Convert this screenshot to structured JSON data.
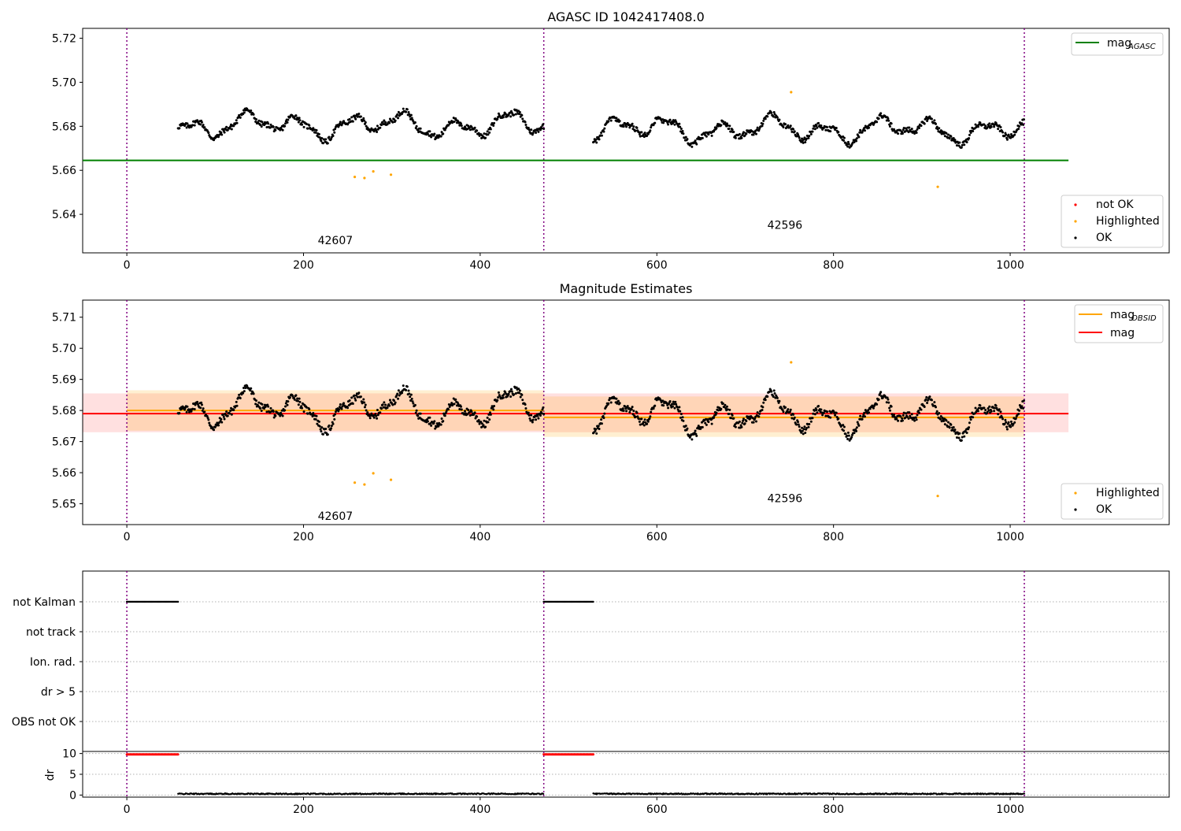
{
  "chart_data": [
    {
      "type": "scatter",
      "title": "AGASC ID 1042417408.0",
      "xlim": [
        -50,
        1180
      ],
      "ylim": [
        5.6225,
        5.7245
      ],
      "x_ticks": [
        0,
        200,
        400,
        600,
        800,
        1000
      ],
      "y_ticks": [
        5.64,
        5.66,
        5.68,
        5.7,
        5.72
      ],
      "y_tick_labels": [
        "5.64",
        "5.66",
        "5.68",
        "5.70",
        "5.72"
      ],
      "obsid_boundaries": [
        0,
        472,
        1016
      ],
      "obsid_labels": [
        {
          "text": "42607",
          "x": 236,
          "y": 5.6265
        },
        {
          "text": "42596",
          "x": 745,
          "y": 5.6335
        }
      ],
      "agasc_mag": {
        "value": 5.6645,
        "x_range": [
          -50,
          1066
        ],
        "color": "#008000"
      },
      "series": [
        {
          "name": "not OK",
          "color": "#ff0000",
          "points": []
        },
        {
          "name": "Highlighted",
          "color": "#ffa500",
          "points": [
            [
              258,
              5.657
            ],
            [
              269,
              5.6565
            ],
            [
              279,
              5.6595
            ],
            [
              299,
              5.658
            ],
            [
              752,
              5.6955
            ],
            [
              918,
              5.6525
            ]
          ]
        },
        {
          "name": "OK",
          "color": "#000000",
          "segments": [
            {
              "x0": 58,
              "x1": 472,
              "mean": 5.6805,
              "amp": 0.007
            },
            {
              "x0": 528,
              "x1": 1016,
              "mean": 5.6785,
              "amp": 0.007
            }
          ]
        }
      ],
      "legend_upper": {
        "mag_label": "mag",
        "mag_sub": "AGASC"
      },
      "legend_lower": [
        "not OK",
        "Highlighted",
        "OK"
      ]
    },
    {
      "type": "scatter",
      "title": "Magnitude Estimates",
      "xlim": [
        -50,
        1180
      ],
      "ylim": [
        5.6433,
        5.7155
      ],
      "x_ticks": [
        0,
        200,
        400,
        600,
        800,
        1000
      ],
      "y_ticks": [
        5.65,
        5.66,
        5.67,
        5.68,
        5.69,
        5.7,
        5.71
      ],
      "y_tick_labels": [
        "5.65",
        "5.66",
        "5.67",
        "5.68",
        "5.69",
        "5.70",
        "5.71"
      ],
      "obsid_boundaries": [
        0,
        472,
        1016
      ],
      "obsid_labels": [
        {
          "text": "42607",
          "x": 236,
          "y": 5.6448
        },
        {
          "text": "42596",
          "x": 745,
          "y": 5.6505
        }
      ],
      "mag": {
        "value": 5.679,
        "band": [
          5.673,
          5.6855
        ],
        "x_range": [
          -50,
          1066
        ],
        "color": "#ff0000"
      },
      "mag_obsid": [
        {
          "x_range": [
            0,
            472
          ],
          "value": 5.68,
          "band": [
            5.6735,
            5.6865
          ]
        },
        {
          "x_range": [
            472,
            1016
          ],
          "value": 5.6778,
          "band": [
            5.6715,
            5.6845
          ]
        }
      ],
      "mag_obsid_color": "#ffa500",
      "series": [
        {
          "name": "Highlighted",
          "color": "#ffa500",
          "points": [
            [
              258,
              5.6568
            ],
            [
              269,
              5.6562
            ],
            [
              279,
              5.6598
            ],
            [
              299,
              5.6577
            ],
            [
              752,
              5.6955
            ],
            [
              918,
              5.6525
            ]
          ]
        },
        {
          "name": "OK",
          "color": "#000000",
          "segments": [
            {
              "x0": 58,
              "x1": 472,
              "mean": 5.6805,
              "amp": 0.007
            },
            {
              "x0": 528,
              "x1": 1016,
              "mean": 5.6785,
              "amp": 0.007
            }
          ]
        }
      ],
      "legend_upper": [
        {
          "label": "mag",
          "sub": "OBSID",
          "color": "#ffa500"
        },
        {
          "label": "mag",
          "sub": "",
          "color": "#ff0000"
        }
      ],
      "legend_lower": [
        "Highlighted",
        "OK"
      ]
    },
    {
      "type": "scatter",
      "xlim": [
        -50,
        1180
      ],
      "categories": [
        "not Kalman",
        "not track",
        "Ion. rad.",
        "dr > 5",
        "OBS not OK"
      ],
      "flag_segments": [
        {
          "category": "not Kalman",
          "x0": 0,
          "x1": 58
        },
        {
          "category": "not Kalman",
          "x0": 472,
          "x1": 528
        }
      ],
      "obsid_boundaries": [
        0,
        472,
        1016
      ]
    },
    {
      "type": "scatter",
      "xlim": [
        -50,
        1180
      ],
      "ylim": [
        -0.5,
        10.5
      ],
      "ylabel": "dr",
      "x_ticks": [
        0,
        200,
        400,
        600,
        800,
        1000
      ],
      "y_ticks": [
        0,
        5,
        10
      ],
      "y_tick_labels": [
        "0",
        "5",
        "10"
      ],
      "obsid_boundaries": [
        0,
        472,
        1016
      ],
      "series": [
        {
          "name": "dr > 5",
          "color": "#ff0000",
          "segments": [
            {
              "x0": 0,
              "x1": 58,
              "value": 9.8
            },
            {
              "x0": 472,
              "x1": 528,
              "value": 9.8
            }
          ]
        },
        {
          "name": "dr",
          "color": "#000000",
          "segments": [
            {
              "x0": 58,
              "x1": 472,
              "value": 0.3
            },
            {
              "x0": 528,
              "x1": 1016,
              "value": 0.3
            }
          ]
        }
      ]
    }
  ]
}
